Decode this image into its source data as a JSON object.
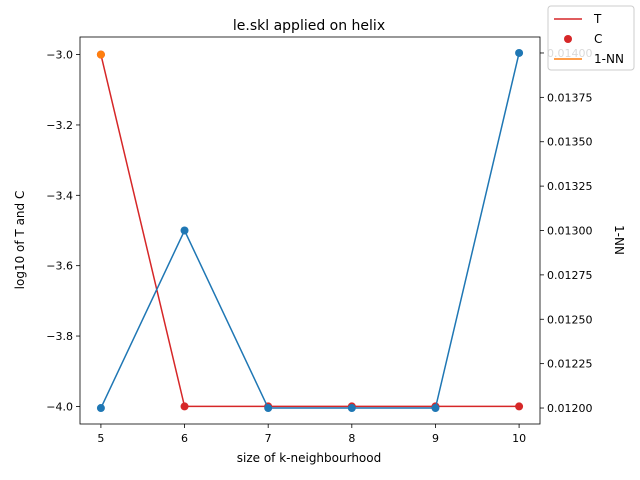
{
  "chart_data": {
    "type": "line",
    "title": "le.skl applied on helix",
    "xlabel": "size of k-neighbourhood",
    "ylabel": "log10 of T and C",
    "y2label": "1-NN",
    "x": [
      5,
      6,
      7,
      8,
      9,
      10
    ],
    "xlim": [
      4.75,
      10.25
    ],
    "ylim": [
      -4.05,
      -2.95
    ],
    "y2lim": [
      0.01191,
      0.01409
    ],
    "xticks": [
      "5",
      "6",
      "7",
      "8",
      "9",
      "10"
    ],
    "yticks": [
      -3.0,
      -3.2,
      -3.4,
      -3.6,
      -3.8,
      -4.0
    ],
    "ytick_labels": [
      "−3.0",
      "−3.2",
      "−3.4",
      "−3.6",
      "−3.8",
      "−4.0"
    ],
    "y2ticks": [
      0.012,
      0.01225,
      0.0125,
      0.01275,
      0.013,
      0.01325,
      0.0135,
      0.01375,
      0.014
    ],
    "y2tick_labels": [
      "0.01200",
      "0.01225",
      "0.01250",
      "0.01275",
      "0.01300",
      "0.01325",
      "0.01350",
      "0.01375",
      "0.01400"
    ],
    "series": [
      {
        "name": "T",
        "axis": "left",
        "style": "line",
        "color": "#d62728",
        "values": [
          -3.0,
          -4.0,
          -4.0,
          -4.0,
          -4.0,
          -4.0
        ]
      },
      {
        "name": "C",
        "axis": "left",
        "style": "scatter",
        "color": "#d62728",
        "values": [
          -3.0,
          -4.0,
          -4.0,
          -4.0,
          -4.0,
          -4.0
        ]
      },
      {
        "name": "1-NN",
        "axis": "right",
        "style": "line+markers",
        "color": "#1f77b4",
        "values": [
          0.012,
          0.013,
          0.012,
          0.012,
          0.012,
          0.014
        ]
      }
    ],
    "extra_markers": [
      {
        "x": 5,
        "y": -3.0,
        "color": "#ff7f0e"
      }
    ],
    "legend": {
      "placement": "top-right",
      "entries": [
        {
          "label": "T",
          "kind": "line",
          "color": "#d62728"
        },
        {
          "label": "C",
          "kind": "marker",
          "color": "#d62728"
        },
        {
          "label": "1-NN",
          "kind": "line",
          "color": "#ff7f0e"
        }
      ]
    },
    "grid": false
  }
}
